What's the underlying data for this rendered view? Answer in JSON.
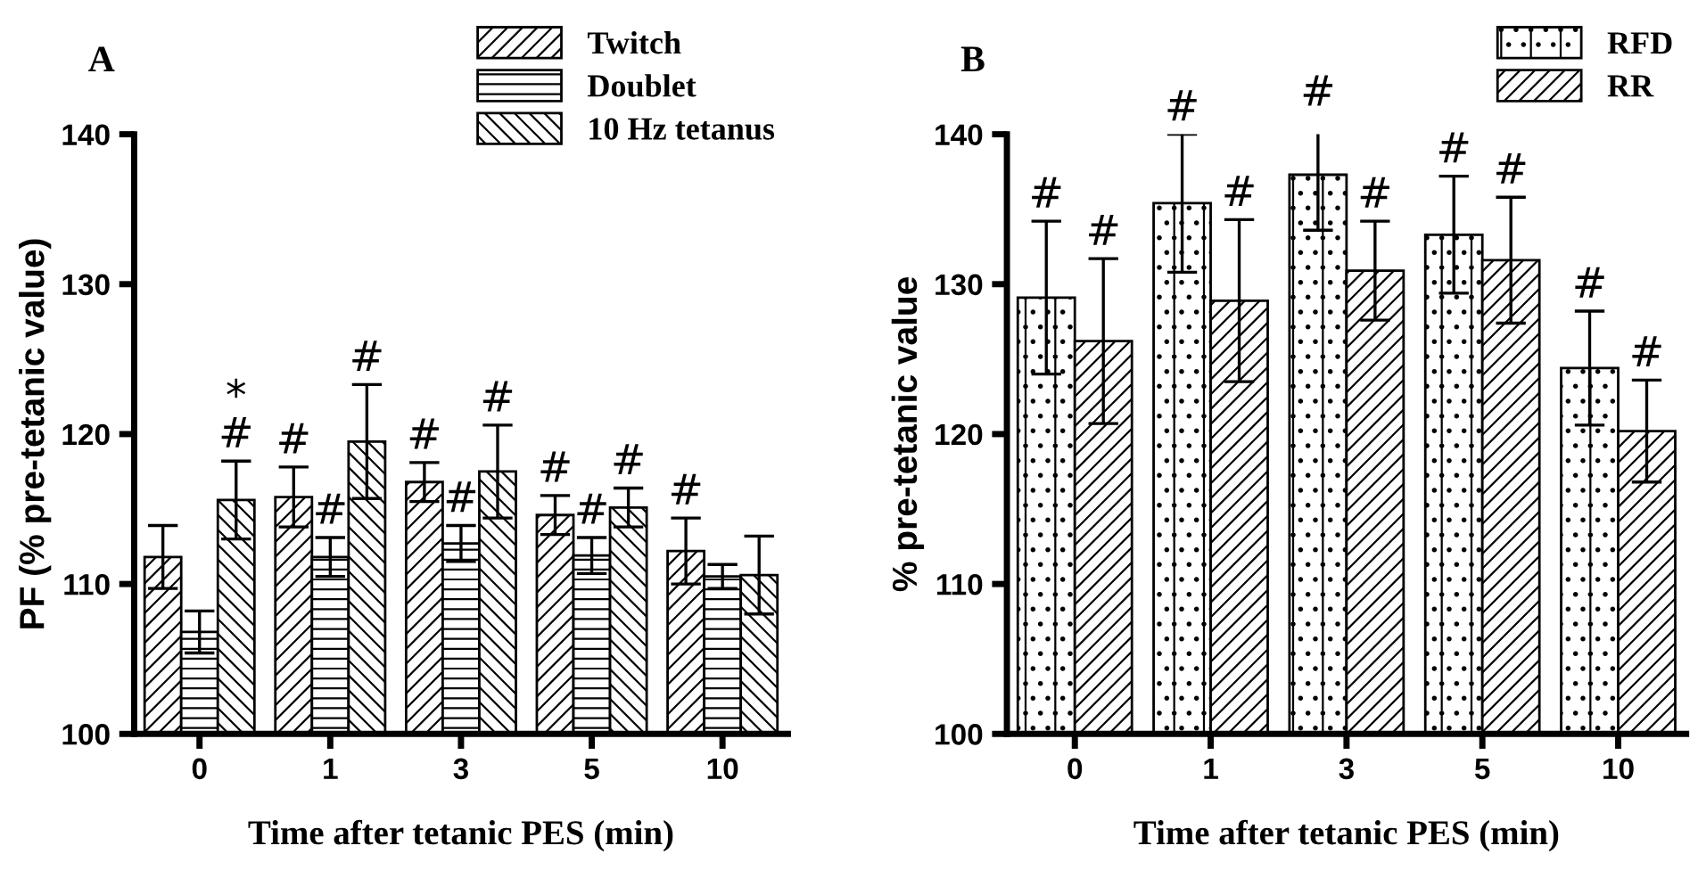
{
  "chart_data": [
    {
      "type": "bar",
      "title": "A",
      "xlabel": "Time after tetanic PES (min)",
      "ylabel": "PF (% pre-tetanic value)",
      "categories": [
        "0",
        "1",
        "3",
        "5",
        "10"
      ],
      "ylim": [
        100,
        140
      ],
      "yticks": [
        100,
        110,
        120,
        130,
        140
      ],
      "grid": false,
      "legend": "top right",
      "series": [
        {
          "name": "Twitch",
          "color": "#000000",
          "values": [
            111.8,
            115.8,
            116.8,
            114.6,
            112.2
          ],
          "errors": [
            2.1,
            2.0,
            1.3,
            1.3,
            2.2
          ],
          "value_labels": [
            null,
            "#",
            "#",
            "#",
            "#"
          ]
        },
        {
          "name": "Doublet",
          "color": "#000000",
          "values": [
            106.8,
            111.8,
            112.7,
            111.9,
            110.5
          ],
          "errors": [
            1.4,
            1.3,
            1.2,
            1.2,
            0.8
          ],
          "value_labels": [
            null,
            "#",
            "#",
            "#",
            null
          ]
        },
        {
          "name": "10 Hz tetanus",
          "color": "#000000",
          "values": [
            115.6,
            119.5,
            117.5,
            115.1,
            110.6
          ],
          "errors": [
            2.6,
            3.8,
            3.1,
            1.3,
            2.6
          ],
          "value_labels": [
            "*\n#",
            "#",
            "#",
            "#",
            null
          ]
        }
      ]
    },
    {
      "type": "bar",
      "title": "B",
      "xlabel": "Time after tetanic PES (min)",
      "ylabel": "% pre-tetanic value",
      "categories": [
        "0",
        "1",
        "3",
        "5",
        "10"
      ],
      "ylim": [
        100,
        140
      ],
      "yticks": [
        100,
        110,
        120,
        130,
        140
      ],
      "grid": false,
      "legend": "top right",
      "series": [
        {
          "name": "RFD",
          "color": "#000000",
          "values": [
            129.1,
            135.4,
            137.3,
            133.3,
            124.4
          ],
          "errors": [
            5.1,
            4.6,
            3.7,
            3.9,
            3.8
          ],
          "value_labels": [
            "#",
            "#",
            "#",
            "#",
            "#"
          ]
        },
        {
          "name": "RR",
          "color": "#000000",
          "values": [
            126.2,
            128.9,
            130.9,
            131.6,
            120.2
          ],
          "errors": [
            5.5,
            5.4,
            3.3,
            4.2,
            3.4
          ],
          "value_labels": [
            "#",
            "#",
            "#",
            "#",
            "#"
          ]
        }
      ]
    }
  ]
}
